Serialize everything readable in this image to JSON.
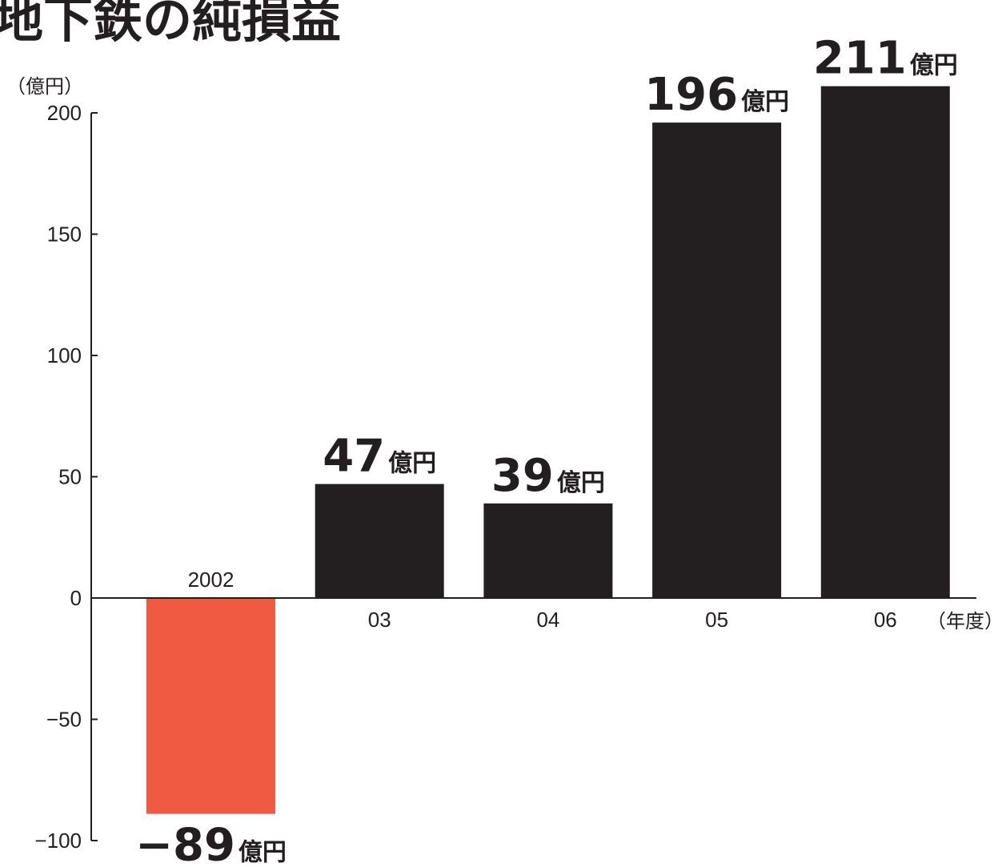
{
  "chart_data": {
    "type": "bar",
    "title": "地下鉄の純損益",
    "y_unit_label": "（億円）",
    "x_unit_label": "（年度）",
    "categories": [
      "2002",
      "03",
      "04",
      "05",
      "06"
    ],
    "values": [
      -89,
      47,
      39,
      196,
      211
    ],
    "value_labels": [
      "−89",
      "47",
      "39",
      "196",
      "211"
    ],
    "value_unit": "億円",
    "ylim": [
      -100,
      200
    ],
    "yticks": [
      -100,
      -50,
      0,
      50,
      100,
      150,
      200
    ],
    "ytick_labels": [
      "−100",
      "−50",
      "0",
      "50",
      "100",
      "150",
      "200"
    ],
    "grid": false,
    "colors": {
      "positive": "#231f20",
      "negative": "#f15a42",
      "text": "#231f20"
    }
  }
}
